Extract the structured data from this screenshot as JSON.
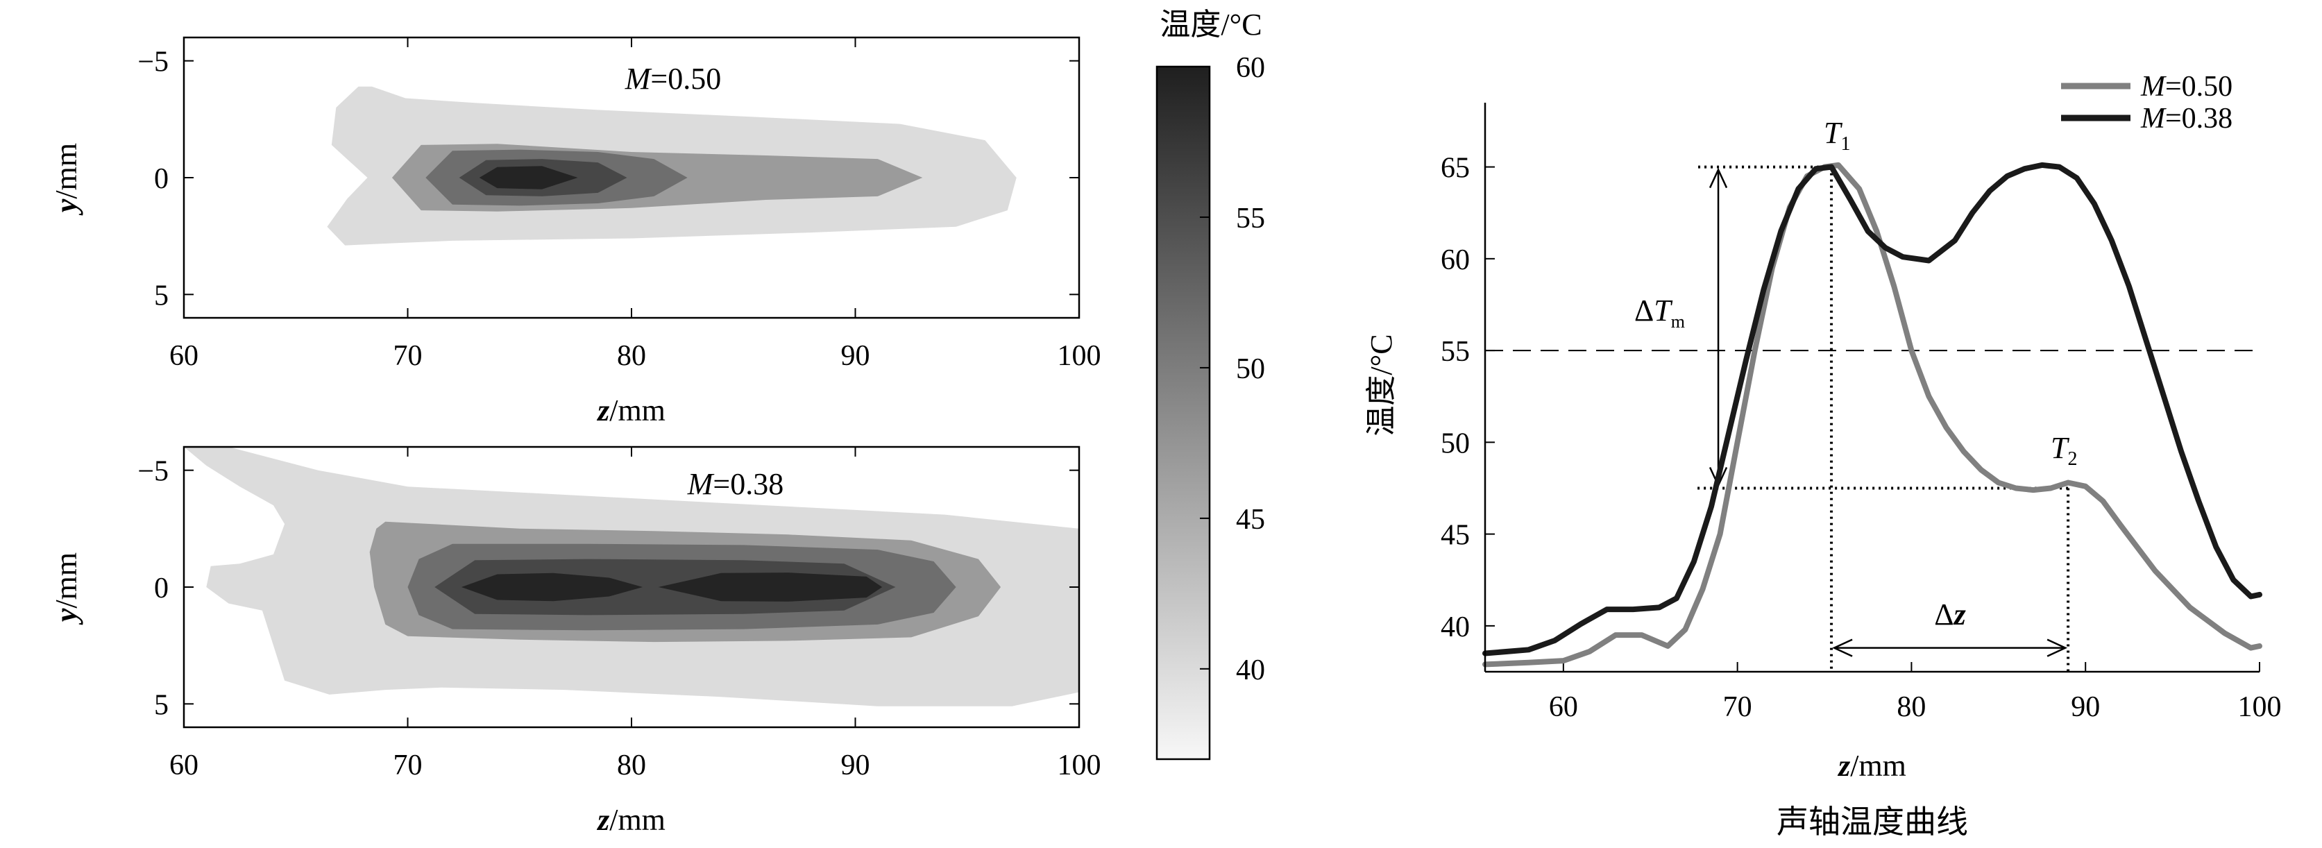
{
  "colorbar": {
    "title": "温度/°C",
    "ticks": [
      40,
      45,
      50,
      55,
      60
    ],
    "range": [
      37,
      60
    ],
    "color_low": "#f7f7f7",
    "color_high": "#1f1f1f"
  },
  "contour_panels": [
    {
      "annotation_var": "M",
      "annotation_value": "=0.50",
      "ylabel_var": "y",
      "ylabel_unit": "/mm",
      "xlabel_var": "z",
      "xlabel_unit": "/mm",
      "xticks": [
        60,
        70,
        80,
        90,
        100
      ],
      "yticks": [
        -5,
        0,
        5
      ],
      "ytick_labels": [
        "−5",
        "0",
        "5"
      ],
      "xlim": [
        60,
        100
      ],
      "ylim": [
        -6,
        6
      ],
      "levels": [
        {
          "temp": 40,
          "color": "#dcdcdc",
          "z": [
            67.8,
            68.4,
            69.9,
            73.0,
            78.5,
            85.5,
            92.0,
            95.8,
            97.2,
            96.8,
            94.5,
            88.0,
            80.0,
            72.0,
            69.5,
            67.2,
            66.4,
            67.3,
            68.2,
            66.6,
            66.8,
            67.8
          ],
          "y": [
            -3.9,
            -3.9,
            -3.4,
            -3.2,
            -2.9,
            -2.6,
            -2.3,
            -1.6,
            0.0,
            1.4,
            2.1,
            2.35,
            2.6,
            2.7,
            2.8,
            2.9,
            2.1,
            0.9,
            0.0,
            -1.4,
            -3.0,
            -3.9
          ]
        },
        {
          "temp": 45,
          "color": "#9b9b9b",
          "z": [
            70.6,
            74.0,
            80.0,
            86.0,
            91.0,
            93.0,
            91.0,
            86.0,
            80.0,
            74.0,
            70.6,
            69.3,
            70.6
          ],
          "y": [
            -1.4,
            -1.45,
            -1.1,
            -0.95,
            -0.8,
            0.0,
            0.8,
            0.95,
            1.3,
            1.45,
            1.4,
            0.0,
            -1.4
          ]
        },
        {
          "temp": 50,
          "color": "#6e6e6e",
          "z": [
            72.0,
            75.0,
            78.5,
            81.0,
            82.5,
            81.0,
            78.5,
            75.0,
            72.0,
            70.8,
            72.0
          ],
          "y": [
            -1.15,
            -1.2,
            -1.1,
            -0.8,
            0.0,
            0.8,
            1.1,
            1.2,
            1.15,
            0.0,
            -1.15
          ]
        },
        {
          "temp": 55,
          "color": "#474747",
          "z": [
            73.5,
            76.0,
            78.5,
            79.8,
            78.5,
            76.0,
            73.5,
            72.3,
            73.5
          ],
          "y": [
            -0.75,
            -0.8,
            -0.65,
            0.0,
            0.65,
            0.8,
            0.75,
            0.0,
            -0.75
          ]
        },
        {
          "temp": 58,
          "color": "#242424",
          "z": [
            74.0,
            76.0,
            77.6,
            76.0,
            74.0,
            73.2,
            74.0
          ],
          "y": [
            -0.45,
            -0.5,
            0.0,
            0.5,
            0.45,
            0.0,
            -0.45
          ]
        }
      ]
    },
    {
      "annotation_var": "M",
      "annotation_value": "=0.38",
      "ylabel_var": "y",
      "ylabel_unit": "/mm",
      "xlabel_var": "z",
      "xlabel_unit": "/mm",
      "xticks": [
        60,
        70,
        80,
        90,
        100
      ],
      "yticks": [
        -5,
        0,
        5
      ],
      "ytick_labels": [
        "−5",
        "0",
        "5"
      ],
      "xlim": [
        60,
        100
      ],
      "ylim": [
        -6,
        6
      ],
      "levels": [
        {
          "temp": 40,
          "color": "#dcdcdc",
          "z": [
            60.0,
            62.0,
            66.0,
            70.0,
            76.0,
            82.0,
            88.0,
            94.0,
            98.0,
            100.0,
            100.0,
            97.0,
            91.0,
            84.0,
            77.0,
            71.5,
            69.0,
            66.5,
            64.5,
            64.0,
            63.5,
            62.0,
            61.0,
            61.2,
            62.5,
            64.0,
            64.5,
            64.0,
            62.5,
            61.0,
            60.0
          ],
          "y": [
            -6.0,
            -6.0,
            -5.0,
            -4.3,
            -4.0,
            -3.7,
            -3.4,
            -3.1,
            -2.7,
            -2.5,
            4.5,
            5.1,
            5.1,
            4.7,
            4.4,
            4.3,
            4.4,
            4.6,
            4.0,
            2.5,
            1.0,
            0.7,
            0.0,
            -0.9,
            -1.0,
            -1.4,
            -2.7,
            -3.5,
            -4.3,
            -5.2,
            -6.0
          ]
        },
        {
          "temp": 45,
          "color": "#9b9b9b",
          "z": [
            69.0,
            75.0,
            81.0,
            87.0,
            92.5,
            95.5,
            96.5,
            95.5,
            92.5,
            87.0,
            81.0,
            75.0,
            70.0,
            69.0,
            68.5,
            68.3,
            68.6,
            69.0
          ],
          "y": [
            -2.8,
            -2.5,
            -2.4,
            -2.25,
            -2.0,
            -1.2,
            0.0,
            1.25,
            2.15,
            2.3,
            2.35,
            2.25,
            2.1,
            1.6,
            0.0,
            -1.5,
            -2.5,
            -2.8
          ]
        },
        {
          "temp": 50,
          "color": "#6e6e6e",
          "z": [
            72.0,
            78.0,
            85.0,
            91.0,
            93.5,
            94.5,
            93.5,
            91.0,
            85.0,
            78.0,
            72.0,
            70.5,
            70.0,
            70.5,
            72.0
          ],
          "y": [
            -1.85,
            -1.85,
            -1.8,
            -1.6,
            -1.1,
            0.0,
            1.1,
            1.6,
            1.8,
            1.85,
            1.8,
            1.2,
            0.0,
            -1.2,
            -1.85
          ]
        },
        {
          "temp": 55,
          "color": "#474747",
          "z": [
            73.0,
            78.0,
            85.0,
            89.5,
            91.8,
            89.5,
            85.0,
            78.0,
            73.0,
            71.2,
            73.0
          ],
          "y": [
            -1.15,
            -1.2,
            -1.15,
            -1.0,
            0.0,
            1.0,
            1.15,
            1.2,
            1.15,
            0.0,
            -1.15
          ]
        },
        {
          "temp": 58,
          "color": "#242424",
          "z": [
            74.0,
            76.5,
            79.0,
            80.5,
            79.0,
            76.5,
            74.0,
            72.4,
            74.0
          ],
          "y": [
            -0.55,
            -0.6,
            -0.4,
            0.0,
            0.4,
            0.6,
            0.55,
            0.0,
            -0.55
          ]
        },
        {
          "temp": 58,
          "color": "#242424",
          "z": [
            84.0,
            87.0,
            90.5,
            91.2,
            90.5,
            87.0,
            84.0,
            81.2,
            84.0
          ],
          "y": [
            -0.6,
            -0.62,
            -0.45,
            0.0,
            0.45,
            0.62,
            0.6,
            0.0,
            -0.6
          ]
        }
      ]
    }
  ],
  "chart_data": {
    "type": "line",
    "title": "声轴温度曲线",
    "xlabel_var": "z",
    "xlabel_unit": "/mm",
    "ylabel": "温度/°C",
    "xlim": [
      55.5,
      100
    ],
    "ylim": [
      37.5,
      68.5
    ],
    "xticks": [
      60,
      70,
      80,
      90,
      100
    ],
    "yticks": [
      40,
      45,
      50,
      55,
      60,
      65
    ],
    "grid": false,
    "legend_position": "top-right",
    "series": [
      {
        "name_var": "M",
        "name_value": "=0.50",
        "color": "#808080",
        "x": [
          55.5,
          58,
          60,
          61.5,
          63,
          64.5,
          66,
          67,
          68,
          69,
          70,
          71,
          72,
          73,
          74,
          75,
          75.8,
          77,
          78,
          79,
          80,
          81,
          82,
          83,
          84,
          85,
          86,
          87,
          88,
          89,
          90,
          91,
          92,
          94,
          96,
          98,
          99.5,
          100
        ],
        "y": [
          37.9,
          38.0,
          38.1,
          38.6,
          39.5,
          39.5,
          38.9,
          39.8,
          42.0,
          45.0,
          50.0,
          55.0,
          59.5,
          62.8,
          64.5,
          65.0,
          65.1,
          63.8,
          61.5,
          58.5,
          55.0,
          52.5,
          50.8,
          49.5,
          48.5,
          47.8,
          47.5,
          47.4,
          47.5,
          47.8,
          47.6,
          46.8,
          45.5,
          43.0,
          41.0,
          39.6,
          38.8,
          38.9
        ]
      },
      {
        "name_var": "M",
        "name_value": "=0.38",
        "color": "#1a1a1a",
        "x": [
          55.5,
          58,
          59.5,
          61,
          62.5,
          64,
          65.5,
          66.5,
          67.5,
          68.5,
          69.5,
          70.5,
          71.5,
          72.5,
          73.5,
          74.5,
          75.4,
          76.5,
          77.5,
          78.5,
          79.5,
          81,
          82.5,
          83.5,
          84.5,
          85.5,
          86.5,
          87.5,
          88.5,
          89.5,
          90.5,
          91.5,
          92.5,
          93.5,
          94.5,
          95.5,
          96.5,
          97.5,
          98.5,
          99.5,
          100
        ],
        "y": [
          38.5,
          38.7,
          39.2,
          40.1,
          40.9,
          40.9,
          41.0,
          41.5,
          43.5,
          46.5,
          50.5,
          54.5,
          58.3,
          61.5,
          63.8,
          64.9,
          65.0,
          63.2,
          61.5,
          60.6,
          60.1,
          59.9,
          61.0,
          62.5,
          63.7,
          64.5,
          64.9,
          65.1,
          65.0,
          64.4,
          63.0,
          61.0,
          58.5,
          55.5,
          52.5,
          49.5,
          46.8,
          44.3,
          42.5,
          41.6,
          41.7
        ]
      }
    ],
    "reference_line": {
      "y": 55,
      "style": "dashed"
    },
    "annotations": {
      "T1": {
        "var": "T",
        "sub": "1",
        "x": 75.4,
        "y": 65.0
      },
      "T2": {
        "var": "T",
        "sub": "2",
        "x": 89.0,
        "y": 47.5
      },
      "delta_T": {
        "symbol": "Δ",
        "var": "T",
        "sub": "m"
      },
      "delta_z": {
        "symbol": "Δ",
        "var": "z"
      }
    }
  }
}
